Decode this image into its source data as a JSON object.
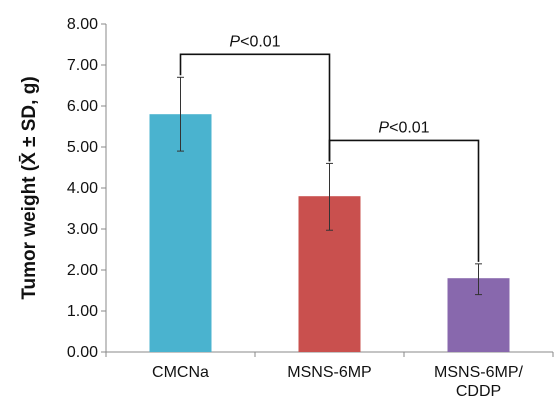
{
  "chart_data": {
    "type": "bar",
    "title": "",
    "xlabel": "",
    "ylabel": "Tumor weight (X̄ ± SD, g)",
    "ylim": [
      0,
      8
    ],
    "yticks": [
      "0.00",
      "1.00",
      "2.00",
      "3.00",
      "4.00",
      "5.00",
      "6.00",
      "7.00",
      "8.00"
    ],
    "grid": false,
    "categories": [
      [
        "CMCNa"
      ],
      [
        "MSNS-6MP"
      ],
      [
        "MSNS-6MP/",
        "CDDP"
      ]
    ],
    "values": [
      5.8,
      3.8,
      1.8
    ],
    "error_low": [
      4.9,
      2.97,
      1.4
    ],
    "error_high": [
      6.7,
      4.6,
      2.15
    ],
    "colors": [
      "#4ab3cf",
      "#c9504e",
      "#8868ad"
    ],
    "annotations": [
      {
        "from": 0,
        "to": 1,
        "prefix": "P",
        "text": "<0.01"
      },
      {
        "from": 1,
        "to": 2,
        "prefix": "P",
        "text": "<0.01"
      }
    ]
  }
}
